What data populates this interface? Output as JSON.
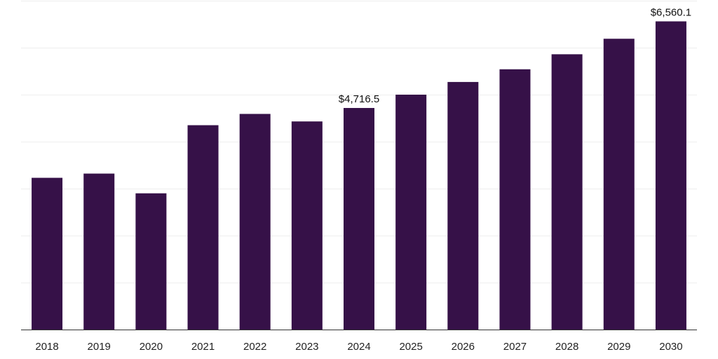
{
  "chart_data": {
    "type": "bar",
    "categories": [
      "2018",
      "2019",
      "2020",
      "2021",
      "2022",
      "2023",
      "2024",
      "2025",
      "2026",
      "2027",
      "2028",
      "2029",
      "2030"
    ],
    "values": [
      3230,
      3320,
      2900,
      4350,
      4590,
      4430,
      4716.5,
      5000,
      5270,
      5540,
      5860,
      6190,
      6560.1
    ],
    "data_labels": [
      {
        "index": 6,
        "text": "$4,716.5"
      },
      {
        "index": 12,
        "text": "$6,560.1"
      }
    ],
    "ylim": [
      0,
      7000
    ],
    "y_grid_step": 1000,
    "grid": true,
    "legend": "none",
    "bar_color": "#361148",
    "title": "",
    "xlabel": "",
    "ylabel": ""
  }
}
